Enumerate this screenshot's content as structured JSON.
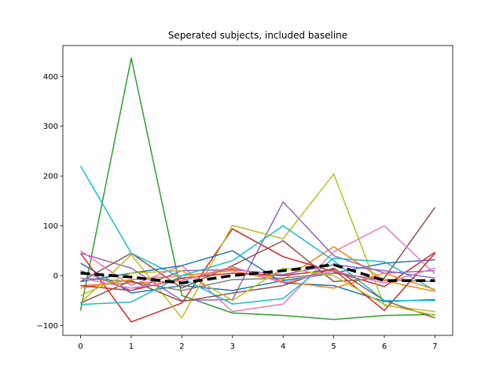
{
  "chart_data": {
    "type": "line",
    "title": "Seperated subjects, included baseline",
    "xlabel": "",
    "ylabel": "",
    "xlim": [
      -0.35,
      7.35
    ],
    "ylim": [
      -120,
      462
    ],
    "x": [
      0,
      1,
      2,
      3,
      4,
      5,
      6,
      7
    ],
    "xticks": [
      0,
      1,
      2,
      3,
      4,
      5,
      6,
      7
    ],
    "yticks": [
      -100,
      0,
      100,
      200,
      300,
      400
    ],
    "grid": false,
    "series": [
      {
        "color": "#1f77b4",
        "values": [
          25,
          -35,
          -20,
          -30,
          -10,
          5,
          25,
          32
        ]
      },
      {
        "color": "#ff7f0e",
        "values": [
          -20,
          -15,
          -10,
          15,
          -8,
          58,
          -10,
          -32
        ]
      },
      {
        "color": "#2ca02c",
        "values": [
          -70,
          437,
          -40,
          -75,
          -80,
          -88,
          -80,
          -78
        ]
      },
      {
        "color": "#d62728",
        "values": [
          45,
          -93,
          -55,
          94,
          38,
          8,
          -22,
          47
        ]
      },
      {
        "color": "#9467bd",
        "values": [
          45,
          15,
          -50,
          -48,
          148,
          40,
          5,
          10
        ]
      },
      {
        "color": "#8c564b",
        "values": [
          -12,
          45,
          -25,
          20,
          70,
          -12,
          -5,
          137
        ]
      },
      {
        "color": "#e377c2",
        "values": [
          50,
          -20,
          20,
          -72,
          -57,
          48,
          100,
          3
        ]
      },
      {
        "color": "#7f7f7f",
        "values": [
          -5,
          -12,
          -30,
          -8,
          -5,
          5,
          -8,
          -12
        ]
      },
      {
        "color": "#bcbd22",
        "values": [
          -55,
          42,
          -85,
          101,
          74,
          204,
          -60,
          -72
        ]
      },
      {
        "color": "#17becf",
        "values": [
          220,
          45,
          -5,
          -57,
          -46,
          35,
          28,
          -30
        ]
      },
      {
        "color": "#1f77b4",
        "values": [
          -12,
          5,
          20,
          50,
          -15,
          -20,
          -52,
          -48
        ]
      },
      {
        "color": "#ff7f0e",
        "values": [
          -25,
          -8,
          0,
          10,
          -12,
          -25,
          5,
          -28
        ]
      },
      {
        "color": "#d62728",
        "values": [
          -20,
          -30,
          -5,
          5,
          0,
          12,
          -70,
          45
        ]
      },
      {
        "color": "#9467bd",
        "values": [
          10,
          -30,
          10,
          12,
          2,
          22,
          10,
          -5
        ]
      },
      {
        "color": "#8c564b",
        "values": [
          -55,
          -10,
          -52,
          -35,
          -20,
          15,
          -50,
          -85
        ]
      },
      {
        "color": "#e377c2",
        "values": [
          -5,
          -25,
          -10,
          18,
          -15,
          10,
          -15,
          15
        ]
      },
      {
        "color": "#bcbd22",
        "values": [
          -40,
          5,
          10,
          -50,
          15,
          0,
          -58,
          -80
        ]
      },
      {
        "color": "#17becf",
        "values": [
          -58,
          -53,
          0,
          30,
          100,
          30,
          -50,
          -50
        ]
      }
    ],
    "baseline": {
      "color": "#000000",
      "style": "dashed",
      "values": [
        5,
        -3,
        -15,
        0,
        10,
        22,
        -10,
        -10
      ]
    }
  }
}
